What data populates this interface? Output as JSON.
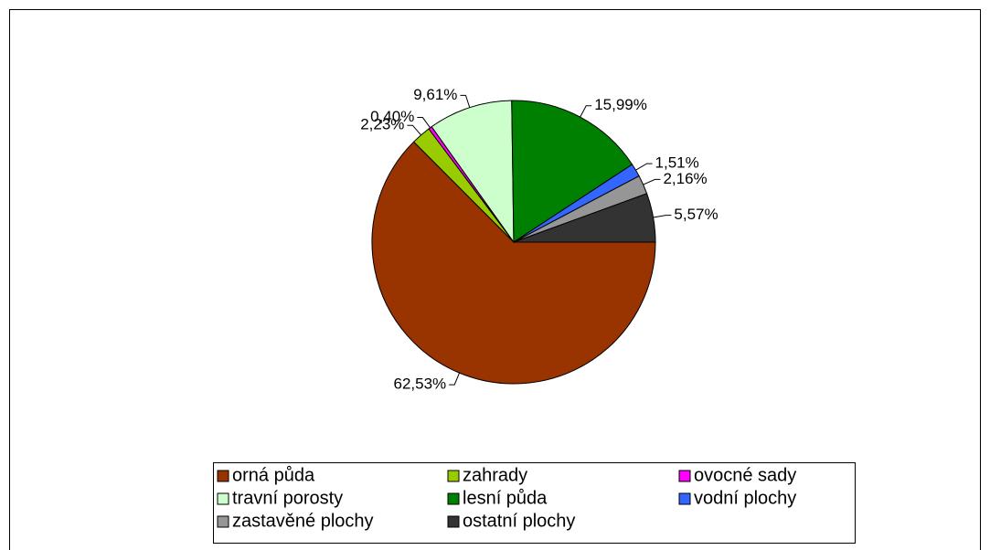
{
  "chart_data": {
    "type": "pie",
    "categories": [
      "orná půda",
      "zahrady",
      "ovocné sady",
      "travní porosty",
      "lesní půda",
      "vodní plochy",
      "zastavěné plochy",
      "ostatní plochy"
    ],
    "values": [
      62.53,
      2.23,
      0.4,
      9.61,
      15.99,
      1.51,
      2.16,
      5.57
    ],
    "value_labels": [
      "62,53%",
      "2,23%",
      "0,40%",
      "9,61%",
      "15,99%",
      "1,51%",
      "2,16%",
      "5,57%"
    ],
    "colors": [
      "#993300",
      "#99cc00",
      "#ff00ff",
      "#ccffcc",
      "#008000",
      "#3366ff",
      "#969696",
      "#333333"
    ],
    "legend": "bottom"
  }
}
